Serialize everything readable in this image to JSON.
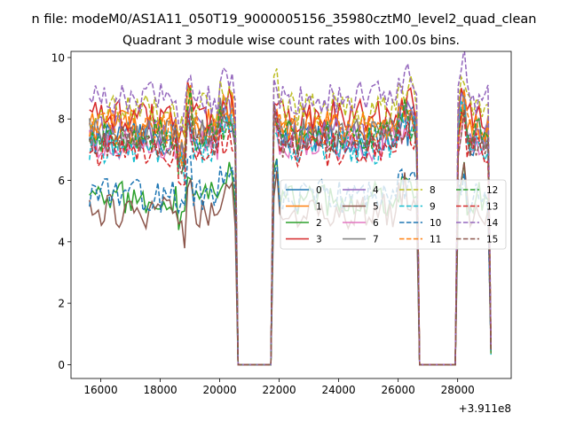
{
  "chart_data": {
    "type": "line",
    "suptitle": "n file: modeM0/AS1A11_050T19_9000005156_35980cztM0_level2_quad_clean",
    "title": "Quadrant 3 module wise count rates with 100.0s bins.",
    "xlabel": "",
    "ylabel": "",
    "x_offset_label": "+3.911e8",
    "xlim": [
      15000,
      29800
    ],
    "ylim": [
      -0.45,
      10.2
    ],
    "xticks": [
      16000,
      18000,
      20000,
      22000,
      24000,
      26000,
      28000
    ],
    "yticks": [
      0,
      2,
      4,
      6,
      8,
      10
    ],
    "grid": false,
    "legend_position": "center-right",
    "legend_columns": 4,
    "x_start": 15620,
    "x_step": 100,
    "gaps": [
      [
        20560,
        21780
      ],
      [
        26640,
        28000
      ]
    ],
    "series": [
      {
        "name": "0",
        "color": "#1f77b4",
        "dash": "solid",
        "base": 7.35,
        "amp": 0.35,
        "seed": 1
      },
      {
        "name": "1",
        "color": "#ff7f0e",
        "dash": "solid",
        "base": 7.8,
        "amp": 0.35,
        "seed": 2
      },
      {
        "name": "2",
        "color": "#2ca02c",
        "dash": "solid",
        "base": 5.4,
        "amp": 0.35,
        "seed": 3
      },
      {
        "name": "3",
        "color": "#d62728",
        "dash": "solid",
        "base": 8.1,
        "amp": 0.35,
        "seed": 4
      },
      {
        "name": "4",
        "color": "#9467bd",
        "dash": "solid",
        "base": 7.55,
        "amp": 0.35,
        "seed": 5
      },
      {
        "name": "5",
        "color": "#8c564b",
        "dash": "solid",
        "base": 5.0,
        "amp": 0.35,
        "seed": 6
      },
      {
        "name": "6",
        "color": "#e377c2",
        "dash": "solid",
        "base": 7.2,
        "amp": 0.35,
        "seed": 7
      },
      {
        "name": "7",
        "color": "#7f7f7f",
        "dash": "solid",
        "base": 7.5,
        "amp": 0.35,
        "seed": 8
      },
      {
        "name": "8",
        "color": "#bcbd22",
        "dash": "dashed",
        "base": 8.3,
        "amp": 0.35,
        "seed": 9
      },
      {
        "name": "9",
        "color": "#17becf",
        "dash": "dashed",
        "base": 7.1,
        "amp": 0.35,
        "seed": 10
      },
      {
        "name": "10",
        "color": "#1f77b4",
        "dash": "dashed",
        "base": 5.5,
        "amp": 0.35,
        "seed": 11
      },
      {
        "name": "11",
        "color": "#ff7f0e",
        "dash": "dashed",
        "base": 7.7,
        "amp": 0.35,
        "seed": 12
      },
      {
        "name": "12",
        "color": "#2ca02c",
        "dash": "dashed",
        "base": 7.45,
        "amp": 0.35,
        "seed": 13
      },
      {
        "name": "13",
        "color": "#d62728",
        "dash": "dashed",
        "base": 7.0,
        "amp": 0.35,
        "seed": 14
      },
      {
        "name": "14",
        "color": "#9467bd",
        "dash": "dashed",
        "base": 8.7,
        "amp": 0.35,
        "seed": 15
      },
      {
        "name": "15",
        "color": "#8c564b",
        "dash": "dashed",
        "base": 7.3,
        "amp": 0.35,
        "seed": 16
      }
    ]
  }
}
